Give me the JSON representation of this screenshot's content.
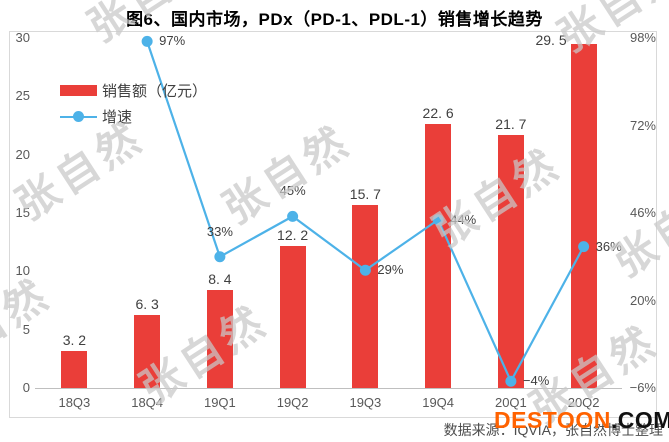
{
  "title": "图6、国内市场，PDx（PD-1、PDL-1）销售增长趋势",
  "legend": [
    {
      "label": "销售额（亿元）",
      "type": "bar",
      "color": "#ea3e39"
    },
    {
      "label": "增速",
      "type": "line",
      "color": "#4db2e8"
    }
  ],
  "chart_data": {
    "type": "bar+line",
    "title": "图6、国内市场，PDx（PD-1、PDL-1）销售增长趋势",
    "categories": [
      "18Q3",
      "18Q4",
      "19Q1",
      "19Q2",
      "19Q3",
      "19Q4",
      "20Q1",
      "20Q2"
    ],
    "series": [
      {
        "name": "销售额（亿元）",
        "type": "bar",
        "color": "#ea3e39",
        "values": [
          3.2,
          6.3,
          8.4,
          12.2,
          15.7,
          22.6,
          21.7,
          29.5
        ],
        "labels": [
          "3. 2",
          "6. 3",
          "8. 4",
          "12. 2",
          "15. 7",
          "22. 6",
          "21. 7",
          "29. 5"
        ],
        "label_placement": [
          "above",
          "above",
          "above",
          "above",
          "above",
          "above",
          "above",
          "left-of-top"
        ]
      },
      {
        "name": "增速",
        "type": "line",
        "color": "#4db2e8",
        "values": [
          null,
          97,
          33,
          45,
          29,
          44,
          -4,
          36
        ],
        "labels": [
          null,
          "97%",
          "33%",
          "45%",
          "29%",
          "44%",
          "−4%",
          "36%"
        ],
        "label_placement": [
          null,
          "right",
          "above",
          "above",
          "right",
          "right",
          "right",
          "right"
        ]
      }
    ],
    "left_axis": {
      "ticks": [
        "30",
        "25",
        "20",
        "15",
        "10",
        "5",
        "0"
      ],
      "min": 0,
      "max": 30
    },
    "right_axis": {
      "ticks": [
        "98%",
        "72%",
        "46%",
        "20%",
        "−6%"
      ],
      "min": -6,
      "max": 98
    },
    "grid": false,
    "legend_position": "top-left-inside"
  },
  "source_note": "数据来源：IQVIA，张自然博士整理",
  "watermark": {
    "text": "张自然",
    "logo": {
      "brand": "DESTOON",
      "tld": ".COM",
      "brand_color": "#ff6200",
      "tld_color": "#111111"
    }
  }
}
